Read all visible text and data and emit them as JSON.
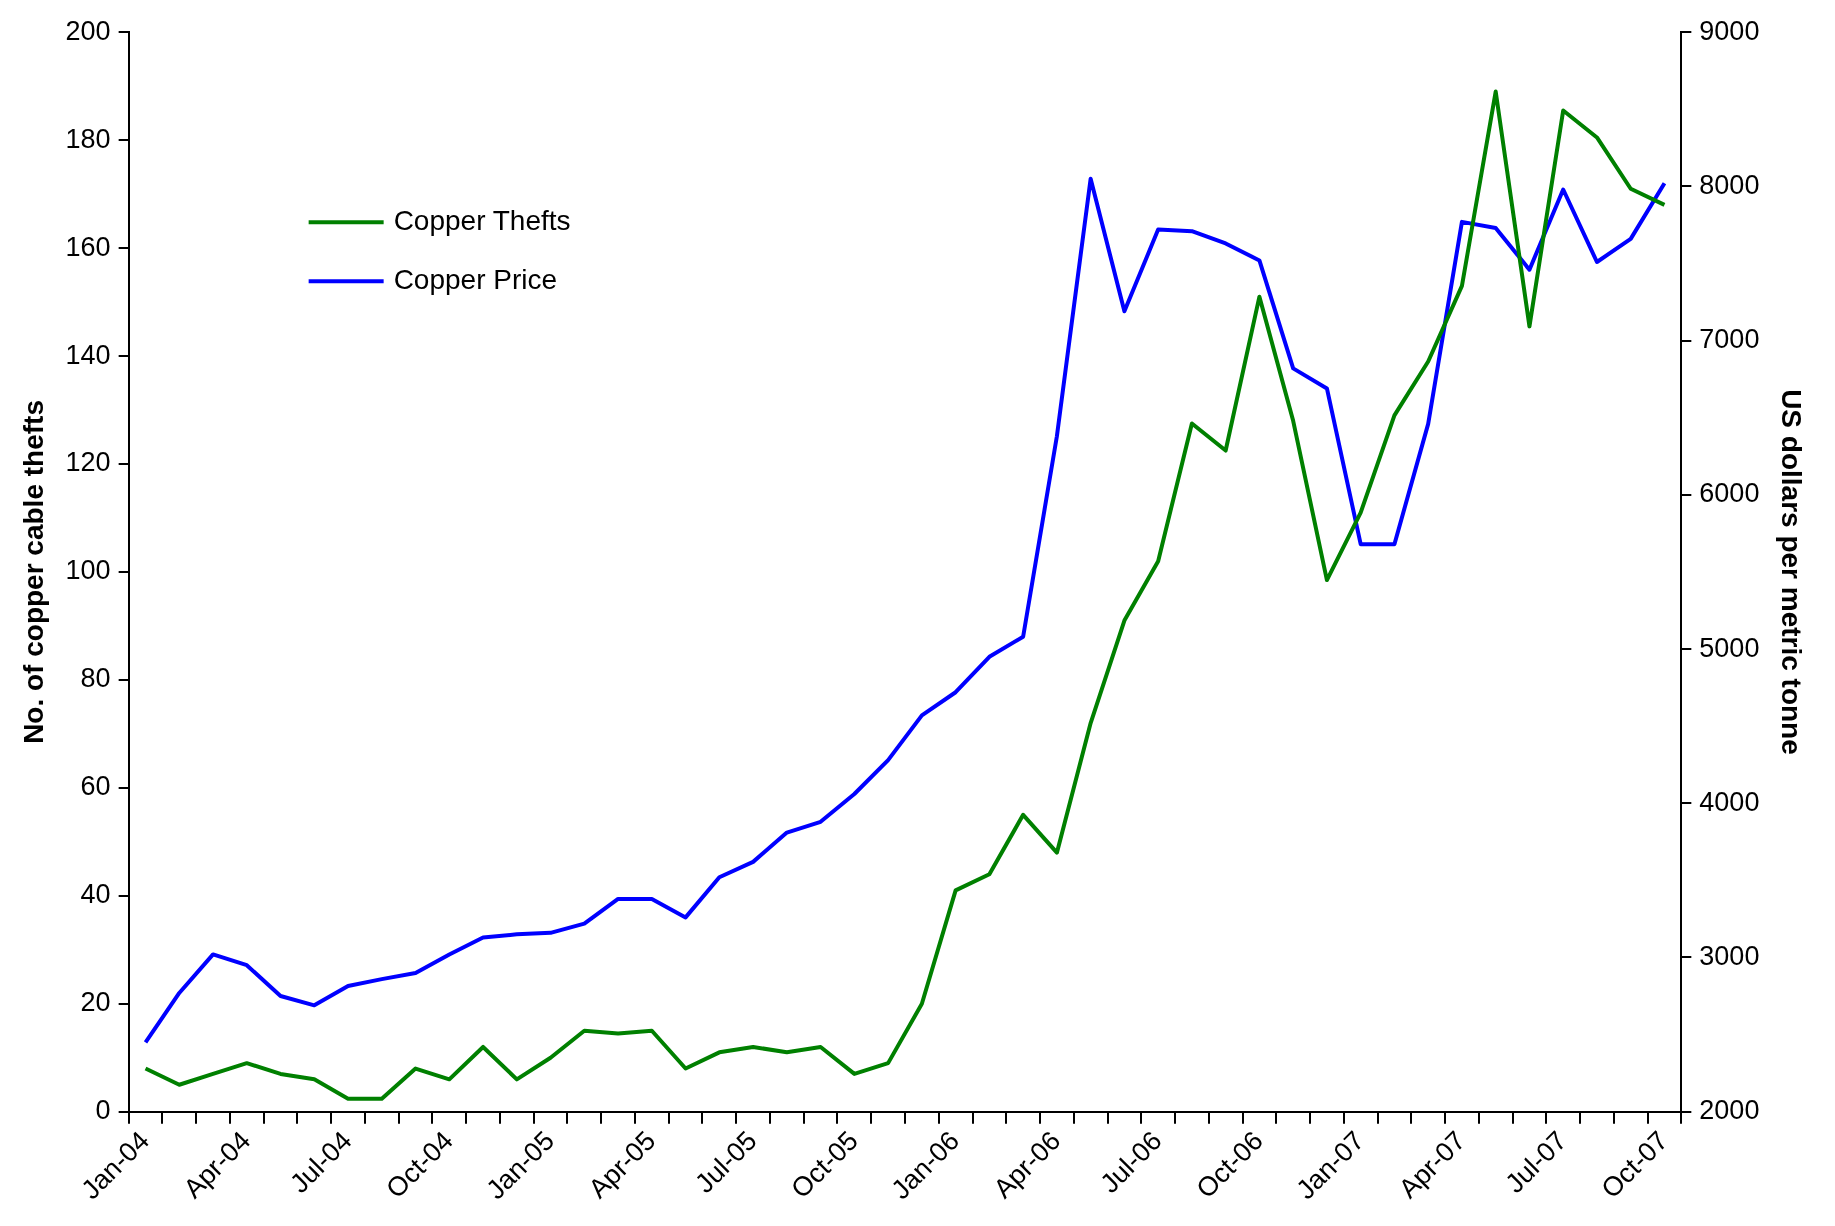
{
  "chart_data": {
    "type": "line",
    "ylabel": "No. of copper cable thefts",
    "y2label": "US dollars per metric tonne",
    "categories": [
      "Jan-04",
      null,
      null,
      "Apr-04",
      null,
      null,
      "Jul-04",
      null,
      null,
      "Oct-04",
      null,
      null,
      "Jan-05",
      null,
      null,
      "Apr-05",
      null,
      null,
      "Jul-05",
      null,
      null,
      "Oct-05",
      null,
      null,
      "Jan-06",
      null,
      null,
      "Apr-06",
      null,
      null,
      "Jul-06",
      null,
      null,
      "Oct-06",
      null,
      null,
      "Jan-07",
      null,
      null,
      "Apr-07",
      null,
      null,
      "Jul-07",
      null,
      null,
      "Oct-07"
    ],
    "series": [
      {
        "name": "Copper Thefts",
        "color": "#008000",
        "values": [
          8,
          5,
          7,
          9,
          7,
          6,
          2.4,
          2.4,
          8,
          6,
          12,
          6,
          10,
          15,
          14.5,
          15,
          8,
          11,
          12,
          11,
          12,
          7,
          9,
          20,
          41,
          44,
          55,
          48,
          72,
          91,
          102,
          127.5,
          122.5,
          151,
          128,
          98.5,
          111,
          129,
          139,
          153,
          189,
          145.5,
          185.5,
          180.5,
          171,
          168
        ]
      },
      {
        "name": "Copper Price",
        "color": "#0000ff",
        "axis": "y2",
        "values": [
          2450,
          2770,
          3020,
          2950,
          2750,
          2690,
          2815,
          2860,
          2900,
          3020,
          3130,
          3150,
          3160,
          3220,
          3380,
          3380,
          3260,
          3520,
          3620,
          3810,
          3880,
          4060,
          4280,
          4570,
          4720,
          4950,
          5080,
          6380,
          8050,
          7190,
          7720,
          7710,
          7630,
          7520,
          6820,
          6690,
          5680,
          5680,
          6460,
          7770,
          7730,
          7460,
          7980,
          7510,
          7660,
          8020
        ]
      }
    ],
    "ylim": [
      0,
      200
    ],
    "yticks": [
      0,
      20,
      40,
      60,
      80,
      100,
      120,
      140,
      160,
      180,
      200
    ],
    "y2lim": [
      2000,
      9000
    ],
    "y2ticks": [
      2000,
      3000,
      4000,
      5000,
      6000,
      7000,
      8000,
      9000
    ],
    "grid": false,
    "legend": "top left",
    "marker": "none",
    "line_style": "solid"
  }
}
